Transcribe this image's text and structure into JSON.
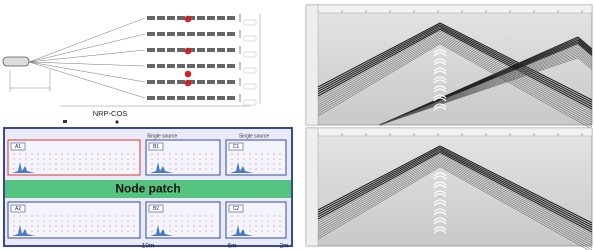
{
  "diagram": {
    "label": "NRP-COS"
  },
  "node_layout": {
    "title": "Node patch",
    "sources": [
      "Single source",
      "Single source"
    ],
    "cells": [
      "A1",
      "B1",
      "C1",
      "A2",
      "B2",
      "C2"
    ],
    "distances": [
      "10m",
      "6m",
      "2m"
    ]
  }
}
